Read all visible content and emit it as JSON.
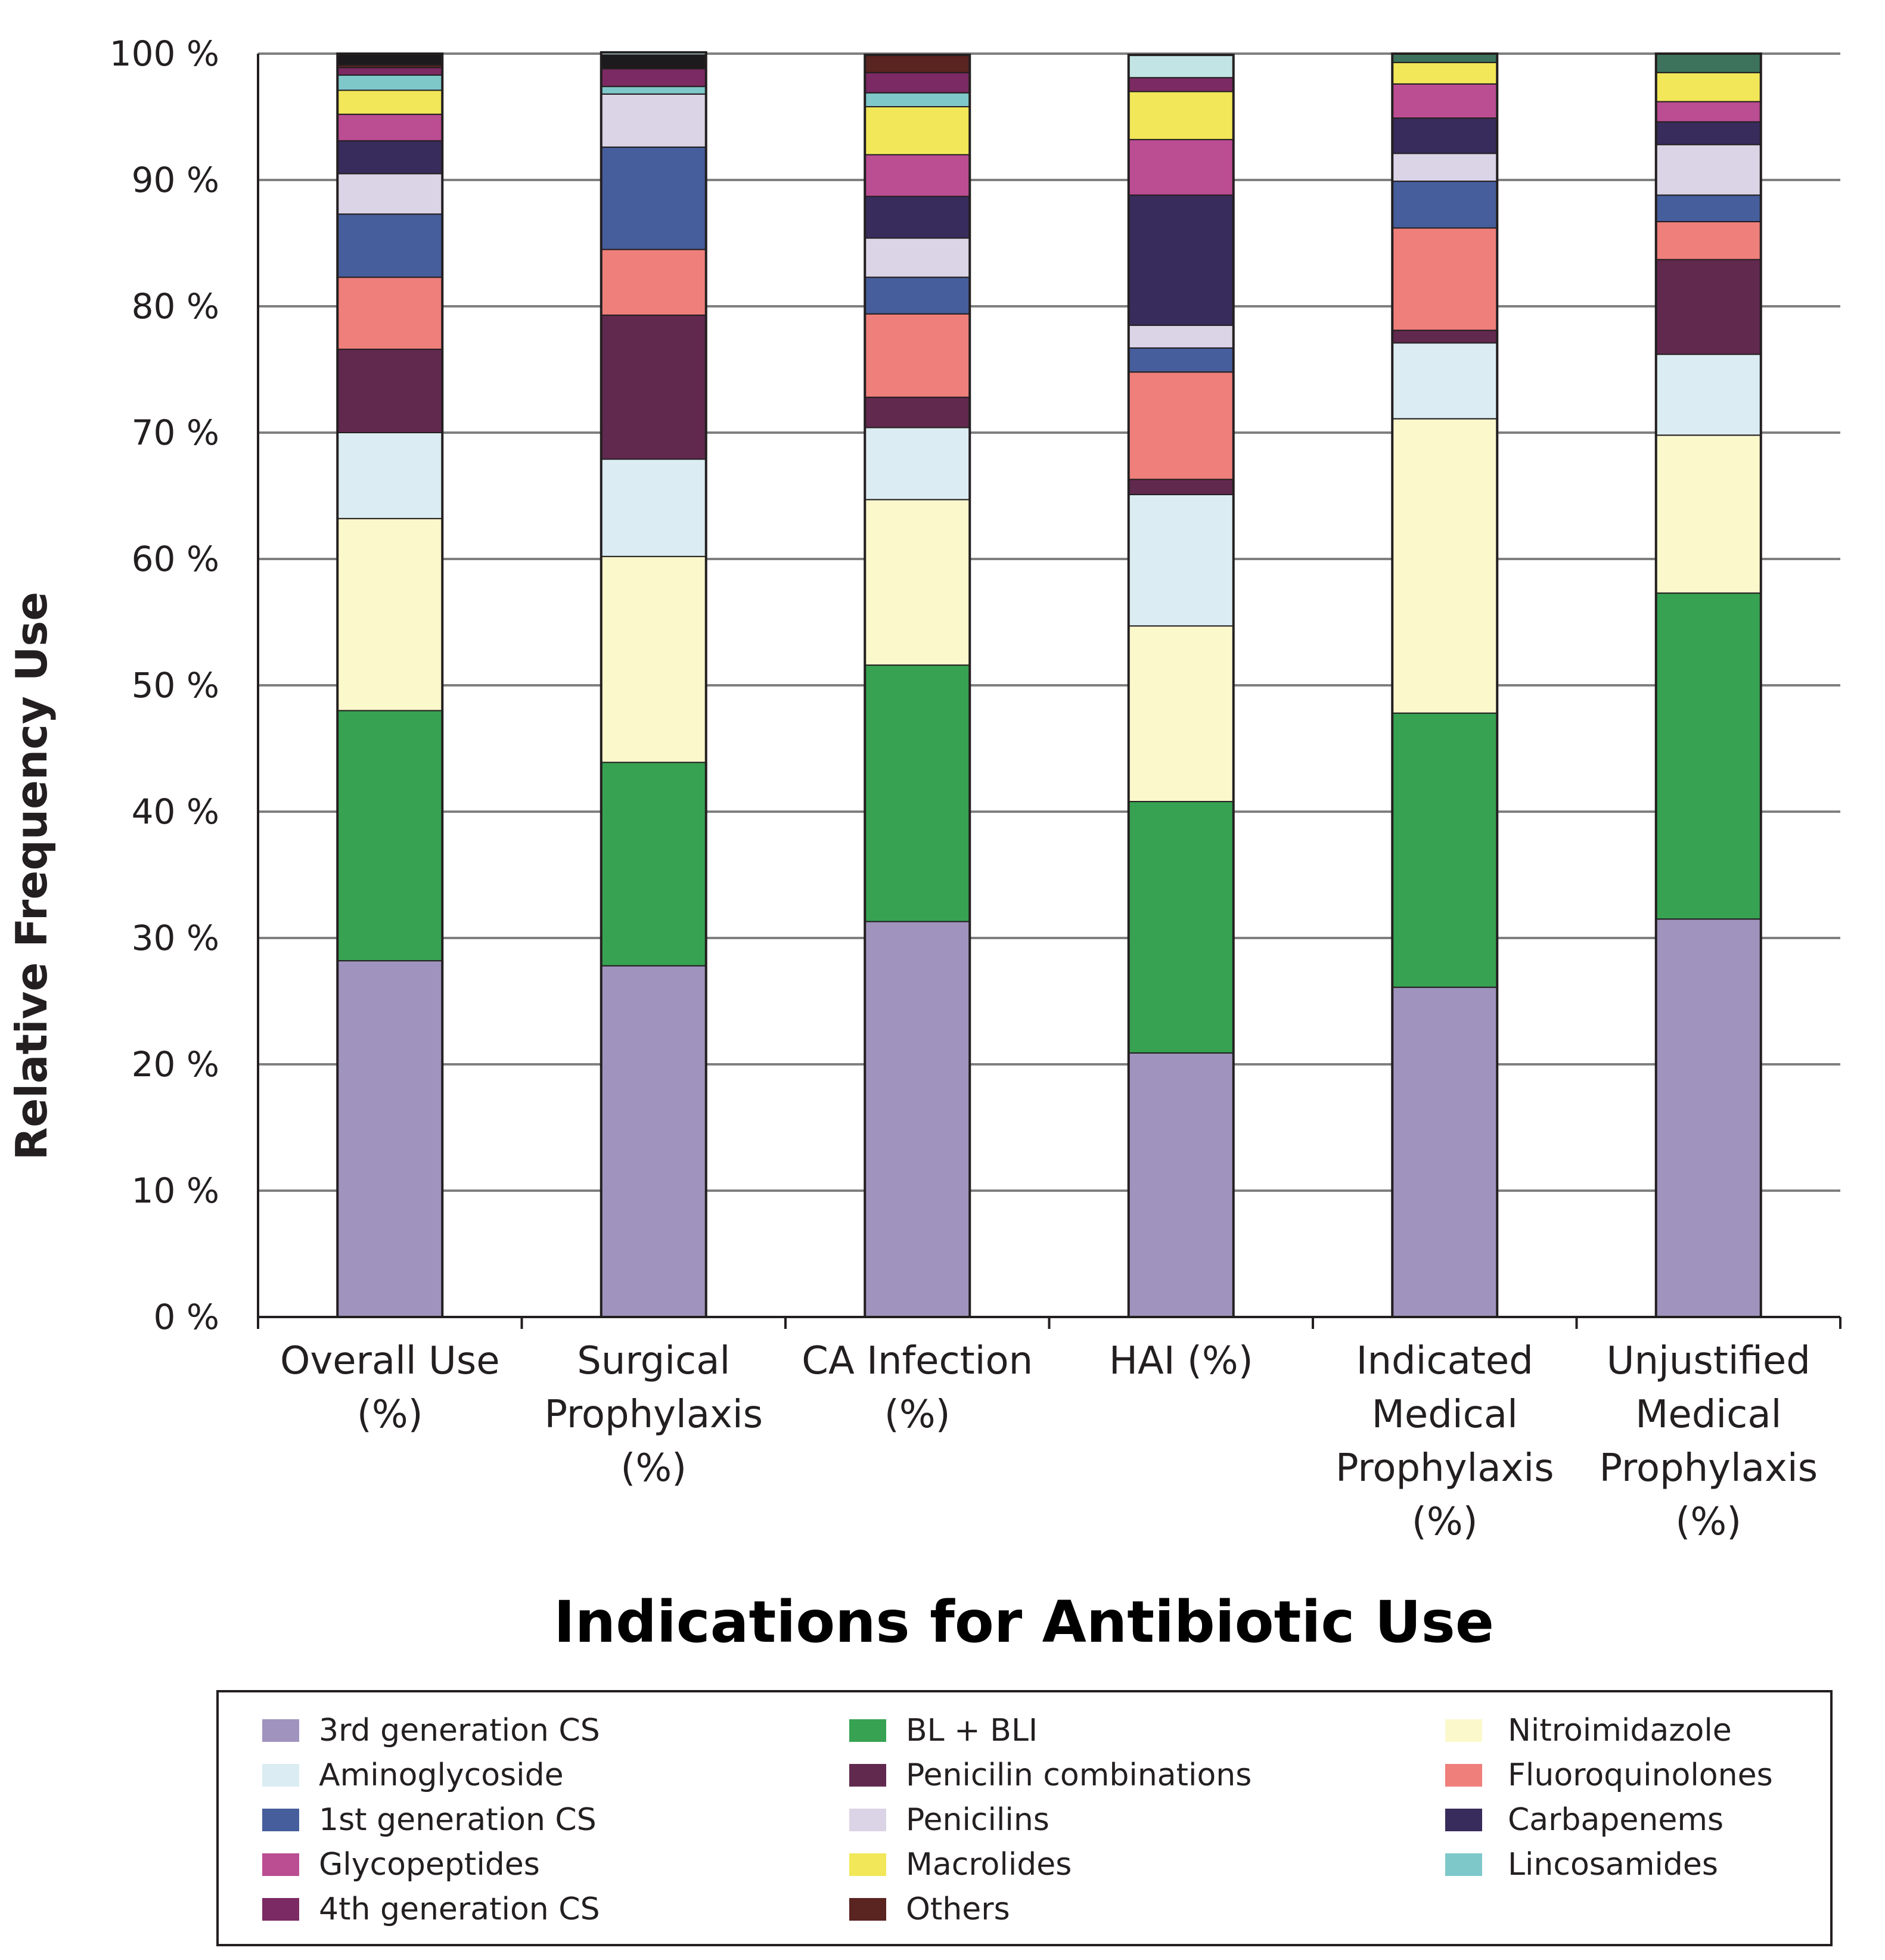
{
  "chart_data": {
    "type": "bar",
    "stacked": true,
    "title": "",
    "xlabel": "Indications for Antibiotic Use",
    "ylabel": "Relative Frequency Use",
    "ylim": [
      0,
      100
    ],
    "yticks": [
      0,
      10,
      20,
      30,
      40,
      50,
      60,
      70,
      80,
      90,
      100
    ],
    "ytick_suffix": " %",
    "grid": true,
    "legend_position": "bottom",
    "categories": [
      [
        "Overall Use",
        "(%)"
      ],
      [
        "Surgical",
        "Prophylaxis",
        "(%)"
      ],
      [
        "CA Infection",
        "(%)"
      ],
      [
        "HAI (%)"
      ],
      [
        "Indicated",
        "Medical",
        "Prophylaxis",
        "(%)"
      ],
      [
        "Unjustified",
        "Medical",
        "Prophylaxis",
        "(%)"
      ]
    ],
    "series": [
      {
        "name": "3rd generation CS",
        "color": "#a094be",
        "values": [
          28.2,
          27.8,
          31.3,
          20.9,
          26.1,
          31.5
        ]
      },
      {
        "name": "BL + BLI",
        "color": "#37a352",
        "values": [
          19.8,
          16.1,
          20.3,
          19.9,
          21.7,
          25.8
        ]
      },
      {
        "name": "Nitroimidazole",
        "color": "#fbf8cc",
        "values": [
          15.2,
          16.3,
          13.1,
          13.9,
          23.3,
          12.5
        ]
      },
      {
        "name": "Aminoglycoside",
        "color": "#dbedf2",
        "values": [
          6.8,
          7.7,
          5.7,
          10.4,
          6.0,
          6.4
        ]
      },
      {
        "name": "Penicilin combinations",
        "color": "#62294f",
        "values": [
          6.6,
          11.4,
          2.4,
          1.2,
          1.0,
          7.5
        ]
      },
      {
        "name": "Fluoroquinolones",
        "color": "#ef7f7b",
        "values": [
          5.7,
          5.2,
          6.6,
          8.5,
          8.1,
          3.0
        ]
      },
      {
        "name": "1st generation CS",
        "color": "#465e9c",
        "values": [
          5.0,
          8.1,
          2.9,
          1.9,
          3.7,
          2.1
        ]
      },
      {
        "name": "Penicilins",
        "color": "#dbd3e6",
        "values": [
          3.2,
          4.2,
          3.1,
          1.8,
          2.2,
          4.0
        ]
      },
      {
        "name": "Carbapenems",
        "color": "#382c5c",
        "values": [
          2.6,
          0,
          3.3,
          10.3,
          2.8,
          1.8
        ]
      },
      {
        "name": "Glycopeptides",
        "color": "#bb4d92",
        "values": [
          2.1,
          0,
          3.3,
          4.4,
          2.7,
          1.6
        ]
      },
      {
        "name": "Macrolides",
        "color": "#f1e759",
        "values": [
          1.9,
          0,
          3.8,
          3.8,
          1.7,
          2.3
        ]
      },
      {
        "name": "Lincosamides",
        "color": "#7fc8ca",
        "values": [
          1.2,
          0.6,
          1.1,
          0,
          0,
          0
        ]
      },
      {
        "name": "4th generation CS",
        "color": "#7c2a63",
        "values": [
          0.6,
          1.4,
          1.6,
          1.1,
          0,
          0
        ]
      },
      {
        "name": "Others",
        "color": "#5a2421",
        "values": [
          0.2,
          0,
          1.4,
          0,
          0,
          0
        ]
      },
      {
        "name": "Unlabeled (black)",
        "color": "#1c1a1c",
        "values": [
          0.9,
          1.1,
          0,
          0,
          0,
          0
        ]
      },
      {
        "name": "Unlabeled (light cyan)",
        "color": "#c3e4e4",
        "values": [
          0,
          0.2,
          0,
          1.8,
          0,
          0
        ]
      },
      {
        "name": "Unlabeled (dark green)",
        "color": "#3d735c",
        "values": [
          0,
          0,
          0,
          0,
          0.7,
          1.5
        ]
      }
    ],
    "legend": [
      {
        "label": "3rd generation CS",
        "color": "#a094be"
      },
      {
        "label": "BL + BLI",
        "color": "#37a352"
      },
      {
        "label": "Nitroimidazole",
        "color": "#fbf8cc"
      },
      {
        "label": "Aminoglycoside",
        "color": "#dbedf2"
      },
      {
        "label": "Penicilin combinations",
        "color": "#62294f"
      },
      {
        "label": "Fluoroquinolones",
        "color": "#ef7f7b"
      },
      {
        "label": "1st generation CS",
        "color": "#465e9c"
      },
      {
        "label": "Penicilins",
        "color": "#dbd3e6"
      },
      {
        "label": "Carbapenems",
        "color": "#382c5c"
      },
      {
        "label": "Glycopeptides",
        "color": "#bb4d92"
      },
      {
        "label": "Macrolides",
        "color": "#f1e759"
      },
      {
        "label": "Lincosamides",
        "color": "#7fc8ca"
      },
      {
        "label": "4th generation CS",
        "color": "#7c2a63"
      },
      {
        "label": "Others",
        "color": "#5a2421"
      }
    ]
  }
}
